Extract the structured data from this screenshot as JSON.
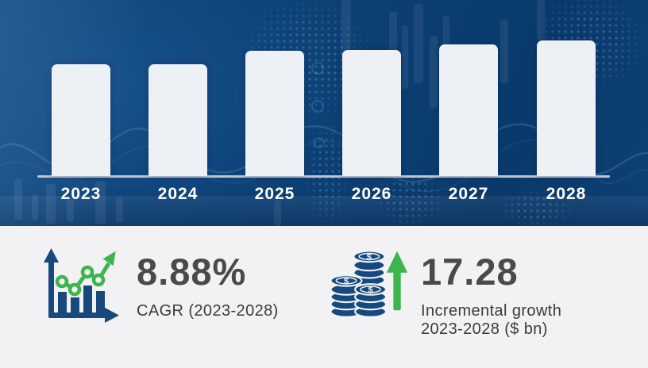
{
  "chart_data": {
    "type": "bar",
    "title": "",
    "categories": [
      "2023",
      "2024",
      "2025",
      "2026",
      "2027",
      "2028"
    ],
    "values": [
      141,
      141,
      158,
      159,
      166,
      171
    ],
    "values_are_relative": true,
    "xlabel": "",
    "ylabel": "",
    "grid": false,
    "legend": false,
    "bar_color": "#edf0f4",
    "label_color": "#ffffff",
    "baseline_color": "#bfc5cd",
    "background_color": "#0d4278"
  },
  "stats": {
    "cagr": {
      "value": "8.88%",
      "label": "CAGR (2023-2028)"
    },
    "incremental": {
      "value": "17.28",
      "label_line1": "Incremental growth",
      "label_line2": "2023-2028 ($ bn)"
    }
  },
  "icons": {
    "dollar": "$",
    "cagr_icon": "bar-chart-with-growth-line-arrow",
    "incremental_icon": "coin-stacks-with-up-arrow"
  },
  "colors": {
    "hero_bg": "#0d4278",
    "panel_bg": "#f2f2f4",
    "icon_navy": "#17497f",
    "icon_green": "#3db54d",
    "stat_value": "#4a4a4c",
    "stat_label": "#3b3b3d"
  }
}
